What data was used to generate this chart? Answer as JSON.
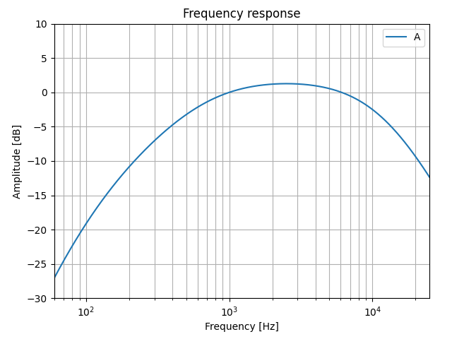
{
  "title": "Frequency response",
  "xlabel": "Frequency [Hz]",
  "ylabel": "Amplitude [dB]",
  "legend_label": "A",
  "line_color": "#1f77b4",
  "line_width": 1.5,
  "freq_start": 60,
  "freq_end": 25000,
  "num_points": 2000,
  "xlim": [
    60,
    25000
  ],
  "ylim": [
    -30,
    10
  ],
  "yticks": [
    -30,
    -25,
    -20,
    -15,
    -10,
    -5,
    0,
    5,
    10
  ],
  "grid_color": "#b0b0b0",
  "grid_linewidth": 0.8,
  "background_color": "#ffffff",
  "figsize": [
    6.4,
    4.8
  ],
  "dpi": 100
}
